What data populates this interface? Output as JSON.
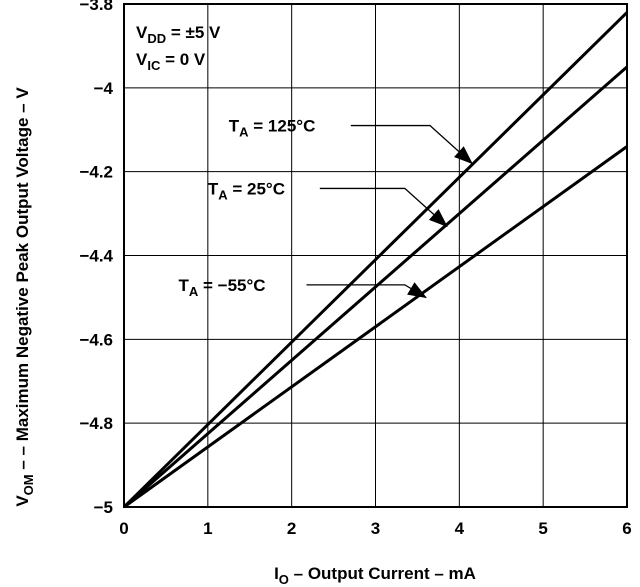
{
  "chart_data": {
    "type": "line",
    "xlabel": {
      "main": "I",
      "sub": "O",
      "rest": " – Output Current – mA"
    },
    "ylabel": {
      "main": "V",
      "sub": "OM",
      "rest": " – – Maximum Negative Peak Output Voltage – V"
    },
    "xlim": [
      0,
      6
    ],
    "ylim": [
      -5,
      -3.8
    ],
    "xticks": [
      0,
      1,
      2,
      3,
      4,
      5,
      6
    ],
    "yticks": [
      -5,
      -4.8,
      -4.6,
      -4.4,
      -4.2,
      -4,
      -3.8
    ],
    "xtick_labels": [
      "0",
      "1",
      "2",
      "3",
      "4",
      "5",
      "6"
    ],
    "ytick_labels": [
      "−5",
      "−4.8",
      "−4.6",
      "−4.4",
      "−4.2",
      "−4",
      "−3.8"
    ],
    "grid": true,
    "series": [
      {
        "name": "T_A = 125°C",
        "x": [
          0,
          6
        ],
        "y": [
          -5,
          -3.82
        ]
      },
      {
        "name": "T_A = 25°C",
        "x": [
          0,
          6
        ],
        "y": [
          -5,
          -3.95
        ]
      },
      {
        "name": "T_A = −55°C",
        "x": [
          0,
          6
        ],
        "y": [
          -5,
          -4.14
        ]
      }
    ],
    "annotations": [
      {
        "main": "V",
        "sub": "DD",
        "rest": " = ±5 V"
      },
      {
        "main": "V",
        "sub": "IC",
        "rest": " = 0 V"
      }
    ],
    "series_labels": [
      {
        "main": "T",
        "sub": "A",
        "rest": " = 125°C",
        "label_at": [
          1.25,
          -4.09
        ],
        "leader_end": [
          3.65,
          -4.09
        ],
        "arrow_to": [
          4.15,
          -4.18
        ]
      },
      {
        "main": "T",
        "sub": "A",
        "rest": " = 25°C",
        "label_at": [
          1.0,
          -4.24
        ],
        "leader_end": [
          3.35,
          -4.24
        ],
        "arrow_to": [
          3.85,
          -4.33
        ]
      },
      {
        "main": "T",
        "sub": "A",
        "rest": " = −55°C",
        "label_at": [
          0.65,
          -4.47
        ],
        "leader_end": [
          3.35,
          -4.47
        ],
        "arrow_to": [
          3.6,
          -4.5
        ]
      }
    ]
  }
}
